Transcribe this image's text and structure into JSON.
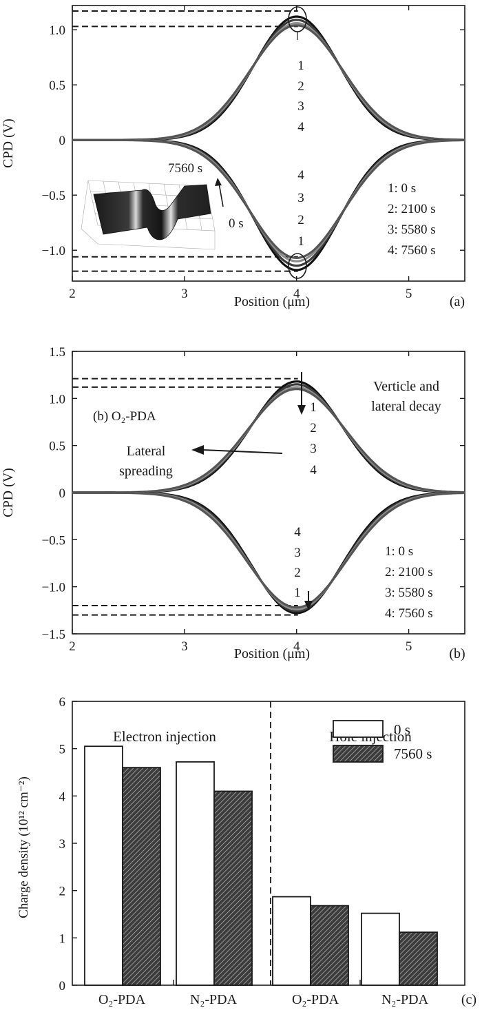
{
  "chart_data": [
    {
      "panel": "(a)",
      "type": "line",
      "xlabel": "Position (μm)",
      "ylabel": "CPD (V)",
      "xlim": [
        2,
        5.5
      ],
      "ylim": [
        -1.28,
        1.22
      ],
      "x_ticks": [
        2,
        3,
        4,
        5
      ],
      "x_tick_labels": [
        "2",
        "3",
        "4",
        "5"
      ],
      "y_ticks": [
        1.0,
        0.5,
        0,
        -0.5,
        -1.0
      ],
      "y_tick_labels": [
        "1.0",
        "0.5",
        "0",
        "−0.5",
        "−1.0"
      ],
      "grid": false,
      "legend_entries": [
        "1: 0 s",
        "2: 2100 s",
        "3: 5580 s",
        "4: 7560 s"
      ],
      "curve_numbers_top": [
        "1",
        "2",
        "3",
        "4"
      ],
      "curve_numbers_bottom": [
        "4",
        "3",
        "2",
        "1"
      ],
      "inset_labels": [
        "7560 s",
        "0 s"
      ],
      "series_shape": "gaussian",
      "center": 4.0,
      "width_sigma": 0.38,
      "positive_peaks": [
        1.12,
        1.09,
        1.06,
        1.04
      ],
      "negative_peaks": [
        -1.18,
        -1.14,
        -1.1,
        -1.07
      ],
      "reference_levels": [
        1.17,
        1.03,
        -1.06,
        -1.19
      ]
    },
    {
      "panel": "(b)",
      "type": "line",
      "title": "(b) O₂-PDA",
      "xlabel": "Position (μm)",
      "ylabel": "CPD (V)",
      "xlim": [
        2,
        5.5
      ],
      "ylim": [
        -1.5,
        1.5
      ],
      "x_ticks": [
        2,
        3,
        4,
        5
      ],
      "x_tick_labels": [
        "2",
        "3",
        "4",
        "5"
      ],
      "y_ticks": [
        1.5,
        1.0,
        0.5,
        0,
        -0.5,
        -1.0,
        -1.5
      ],
      "y_tick_labels": [
        "1.5",
        "1.0",
        "0.5",
        "0",
        "−0.5",
        "−1.0",
        "−1.5"
      ],
      "grid": false,
      "legend_entries": [
        "1: 0 s",
        "2: 2100 s",
        "3: 5580 s",
        "4: 7560 s"
      ],
      "curve_numbers_top": [
        "1",
        "2",
        "3",
        "4"
      ],
      "curve_numbers_bottom": [
        "4",
        "3",
        "2",
        "1"
      ],
      "annotations": [
        "Verticle and",
        "lateral decay",
        "Lateral",
        "spreading"
      ],
      "series_shape": "gaussian",
      "center": 4.0,
      "width_sigma": 0.4,
      "positive_peaks": [
        1.18,
        1.15,
        1.12,
        1.1
      ],
      "negative_peaks": [
        -1.28,
        -1.26,
        -1.24,
        -1.22
      ],
      "reference_levels": [
        1.21,
        1.12,
        -1.2,
        -1.3
      ]
    },
    {
      "panel": "(c)",
      "type": "bar",
      "ylabel": "Charge density (10¹² cm⁻²)",
      "categories": [
        "O₂-PDA",
        "N₂-PDA",
        "O₂-PDA",
        "N₂-PDA"
      ],
      "groups": [
        "Electron injection",
        "Hole injection"
      ],
      "series": [
        {
          "name": "0 s",
          "values": [
            5.05,
            4.72,
            1.87,
            1.52
          ]
        },
        {
          "name": "7560 s",
          "values": [
            4.6,
            4.1,
            1.68,
            1.12
          ]
        }
      ],
      "ylim": [
        0,
        6
      ],
      "y_ticks": [
        0,
        1,
        2,
        3,
        4,
        5,
        6
      ],
      "y_tick_labels": [
        "0",
        "1",
        "2",
        "3",
        "4",
        "5",
        "6"
      ],
      "legend_position": "center-right",
      "grid": false
    }
  ]
}
